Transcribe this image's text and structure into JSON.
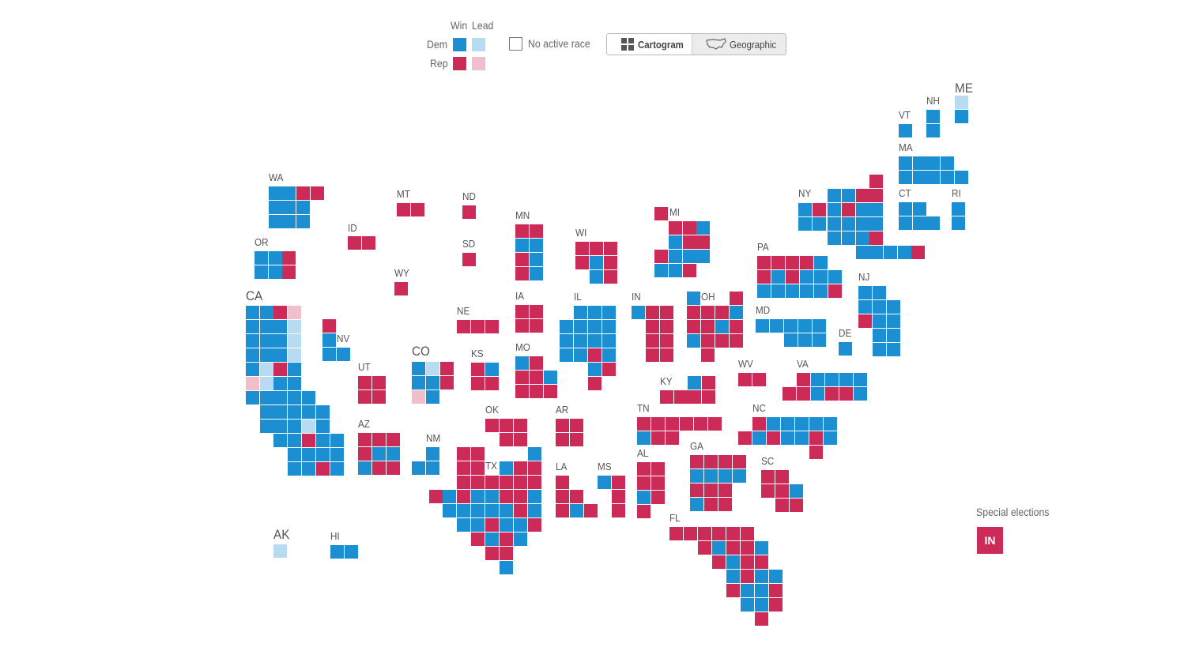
{
  "legend": {
    "win_label": "Win",
    "lead_label": "Lead",
    "dem_label": "Dem",
    "rep_label": "Rep",
    "no_active_label": "No active race"
  },
  "colors": {
    "dem_win": "#1b8fd2",
    "dem_lead": "#b7dcf1",
    "rep_win": "#cc2a57",
    "rep_lead": "#f1bfcb",
    "none": "#ffffff"
  },
  "view_toggle": {
    "cartogram_label": "Cartogram",
    "geographic_label": "Geographic",
    "selected": "Cartogram"
  },
  "special_elections": {
    "title": "Special elections",
    "states": [
      "IN"
    ]
  },
  "states": [
    {
      "abbr": "ME",
      "seats": [
        "DL",
        "DW"
      ]
    },
    {
      "abbr": "NH",
      "seats": [
        "DW",
        "DW"
      ]
    },
    {
      "abbr": "VT",
      "seats": [
        "DW"
      ]
    },
    {
      "abbr": "MA",
      "seats": [
        "DW",
        "DW",
        "DW",
        "DW",
        "DW",
        "DW",
        "DW",
        "DW",
        "DW"
      ]
    },
    {
      "abbr": "CT",
      "seats": [
        "DW",
        "DW",
        "DW",
        "DW",
        "DW"
      ]
    },
    {
      "abbr": "RI",
      "seats": [
        "DW",
        "DW"
      ]
    },
    {
      "abbr": "NY",
      "seats": [
        "RW",
        "DW",
        "DW",
        "RW",
        "RW",
        "DW",
        "RW",
        "DW",
        "RW",
        "DW",
        "DW",
        "DW",
        "DW",
        "DW",
        "DW",
        "DW",
        "DW",
        "DW",
        "DW",
        "DW",
        "RW",
        "DW",
        "DW",
        "DW",
        "DW",
        "RW",
        "DW",
        "RW",
        "RW",
        "RW",
        "RW"
      ]
    },
    {
      "abbr": "WA",
      "seats": [
        "DW",
        "DW",
        "RW",
        "RW",
        "DW",
        "DW",
        "DW",
        "DW",
        "DW",
        "DW"
      ]
    },
    {
      "abbr": "OR",
      "seats": [
        "DW",
        "DW",
        "RW",
        "DW",
        "DW",
        "RW"
      ]
    },
    {
      "abbr": "CA",
      "seats": [
        "DW",
        "DW",
        "RW",
        "RL",
        "DW",
        "DW",
        "DW",
        "DL",
        "DW",
        "DW",
        "DW",
        "DL",
        "DW",
        "DW",
        "DW",
        "DL",
        "DW",
        "DL",
        "RW",
        "DW",
        "RL",
        "DL",
        "DW",
        "DW",
        "DW",
        "DW",
        "DW",
        "DW",
        "DW",
        "DW",
        "DW",
        "DW",
        "DW",
        "DW",
        "DW",
        "DW",
        "DW",
        "DL",
        "DW",
        "DW",
        "DW",
        "RW",
        "DW",
        "DW",
        "DW",
        "DW",
        "DW",
        "DW",
        "DW",
        "DW",
        "RW",
        "DW",
        "DW",
        "DL",
        "DL",
        "RW",
        "DW",
        "DW",
        "DW",
        "DW",
        "RW",
        "DW",
        "DW",
        "DW",
        "DW"
      ]
    },
    {
      "abbr": "MT",
      "seats": [
        "RW",
        "RW"
      ]
    },
    {
      "abbr": "ND",
      "seats": [
        "RW"
      ]
    },
    {
      "abbr": "ID",
      "seats": [
        "RW",
        "RW"
      ]
    },
    {
      "abbr": "SD",
      "seats": [
        "RW"
      ]
    },
    {
      "abbr": "WY",
      "seats": [
        "RW"
      ]
    },
    {
      "abbr": "NV",
      "seats": [
        "RW",
        "DW",
        "DW",
        "DW"
      ]
    },
    {
      "abbr": "UT",
      "seats": [
        "RW",
        "RW",
        "RW",
        "RW"
      ]
    },
    {
      "abbr": "CO",
      "seats": [
        "DW",
        "DL",
        "RW",
        "DW",
        "DW",
        "RW",
        "RL",
        "DW"
      ]
    },
    {
      "abbr": "AZ",
      "seats": [
        "RW",
        "RW",
        "RW",
        "RW",
        "DW",
        "DW",
        "DW",
        "RW",
        "RW"
      ]
    },
    {
      "abbr": "NM",
      "seats": [
        "DW",
        "DW",
        "DW"
      ]
    },
    {
      "abbr": "MN",
      "seats": [
        "RW",
        "RW",
        "DW",
        "DW",
        "RW",
        "DW",
        "RW",
        "DW"
      ]
    },
    {
      "abbr": "WI",
      "seats": [
        "RW",
        "RW",
        "RW",
        "RW",
        "DW",
        "RW",
        "DW",
        "RW"
      ]
    },
    {
      "abbr": "MI",
      "seats": [
        "RW",
        "RW",
        "DW",
        "RW",
        "RW",
        "RW",
        "DW",
        "DW",
        "DW",
        "DW",
        "DW",
        "RW",
        "RW",
        "DW"
      ]
    },
    {
      "abbr": "IA",
      "seats": [
        "RW",
        "RW",
        "RW",
        "RW"
      ]
    },
    {
      "abbr": "NE",
      "seats": [
        "RW",
        "RW",
        "RW"
      ]
    },
    {
      "abbr": "KS",
      "seats": [
        "RW",
        "DW",
        "RW",
        "RW"
      ]
    },
    {
      "abbr": "MO",
      "seats": [
        "DW",
        "RW",
        "RW",
        "RW",
        "DW",
        "RW",
        "RW",
        "RW"
      ]
    },
    {
      "abbr": "IL",
      "seats": [
        "DW",
        "DW",
        "DW",
        "DW",
        "DW",
        "DW",
        "DW",
        "DW",
        "DW",
        "DW",
        "DW",
        "DW",
        "DW",
        "RW",
        "DW",
        "DW",
        "RW",
        "RW"
      ]
    },
    {
      "abbr": "IN",
      "seats": [
        "DW",
        "RW",
        "RW",
        "RW",
        "RW",
        "RW",
        "RW",
        "RW",
        "RW"
      ]
    },
    {
      "abbr": "OH",
      "seats": [
        "DW",
        "RW",
        "RW",
        "RW",
        "RW",
        "DW",
        "RW",
        "RW",
        "DW",
        "RW",
        "DW",
        "RW",
        "RW",
        "RW",
        "RW"
      ]
    },
    {
      "abbr": "PA",
      "seats": [
        "RW",
        "RW",
        "RW",
        "RW",
        "DW",
        "RW",
        "DW",
        "RW",
        "DW",
        "DW",
        "DW",
        "DW",
        "DW",
        "DW",
        "DW",
        "DW",
        "RW"
      ]
    },
    {
      "abbr": "NJ",
      "seats": [
        "DW",
        "DW",
        "DW",
        "DW",
        "DW",
        "RW",
        "DW",
        "DW",
        "DW",
        "DW",
        "RW",
        "DW",
        "DW"
      ]
    },
    {
      "abbr": "MD",
      "seats": [
        "DW",
        "DW",
        "DW",
        "DW",
        "DW",
        "DW",
        "DW",
        "DW"
      ]
    },
    {
      "abbr": "DE",
      "seats": [
        "DW"
      ]
    },
    {
      "abbr": "WV",
      "seats": [
        "RW",
        "RW"
      ]
    },
    {
      "abbr": "VA",
      "seats": [
        "RW",
        "DW",
        "DW",
        "DW",
        "RW",
        "RW",
        "DW",
        "RW",
        "RW",
        "DW",
        "DW"
      ]
    },
    {
      "abbr": "KY",
      "seats": [
        "RW",
        "DW",
        "RW",
        "RW",
        "RW",
        "RW"
      ]
    },
    {
      "abbr": "TN",
      "seats": [
        "RW",
        "RW",
        "RW",
        "RW",
        "RW",
        "RW",
        "DW",
        "RW",
        "RW"
      ]
    },
    {
      "abbr": "NC",
      "seats": [
        "RW",
        "DW",
        "DW",
        "DW",
        "DW",
        "DW",
        "RW",
        "DW",
        "RW",
        "DW",
        "DW",
        "RW",
        "DW",
        "RW"
      ]
    },
    {
      "abbr": "SC",
      "seats": [
        "RW",
        "RW",
        "RW",
        "RW",
        "DW",
        "RW",
        "RW"
      ]
    },
    {
      "abbr": "OK",
      "seats": [
        "RW",
        "RW",
        "RW",
        "RW",
        "RW"
      ]
    },
    {
      "abbr": "AR",
      "seats": [
        "RW",
        "RW",
        "RW",
        "RW"
      ]
    },
    {
      "abbr": "TX",
      "seats": [
        "RW",
        "RW",
        "RW",
        "RW",
        "RW",
        "RW",
        "RW",
        "RW",
        "RW",
        "RW",
        "RW",
        "DW",
        "RW",
        "DW",
        "DW",
        "RW",
        "RW",
        "DW",
        "DW",
        "DW",
        "DW",
        "DW",
        "DW",
        "RW",
        "DW",
        "DW",
        "DW",
        "RW",
        "DW",
        "DW",
        "RW",
        "RW",
        "DW",
        "RW",
        "DW",
        "RW",
        "RW",
        "DW",
        "RW",
        "DW",
        "RW",
        "DW"
      ]
    },
    {
      "abbr": "LA",
      "seats": [
        "RW",
        "RW",
        "RW",
        "RW",
        "DW",
        "RW"
      ]
    },
    {
      "abbr": "MS",
      "seats": [
        "DW",
        "RW",
        "RW",
        "RW"
      ]
    },
    {
      "abbr": "AL",
      "seats": [
        "RW",
        "RW",
        "RW",
        "RW",
        "DW",
        "RW",
        "RW"
      ]
    },
    {
      "abbr": "GA",
      "seats": [
        "RW",
        "RW",
        "RW",
        "RW",
        "DW",
        "DW",
        "DW",
        "DW",
        "RW",
        "RW",
        "RW",
        "DW",
        "RW",
        "RW"
      ]
    },
    {
      "abbr": "FL",
      "seats": [
        "RW",
        "RW",
        "RW",
        "RW",
        "RW",
        "RW",
        "RW",
        "DW",
        "RW",
        "RW",
        "DW",
        "RW",
        "DW",
        "RW",
        "RW",
        "DW",
        "RW",
        "DW",
        "DW",
        "RW",
        "DW",
        "DW",
        "RW",
        "DW",
        "DW",
        "RW",
        "RW"
      ]
    },
    {
      "abbr": "AK",
      "seats": [
        "DL"
      ]
    },
    {
      "abbr": "HI",
      "seats": [
        "DW",
        "DW"
      ]
    }
  ]
}
